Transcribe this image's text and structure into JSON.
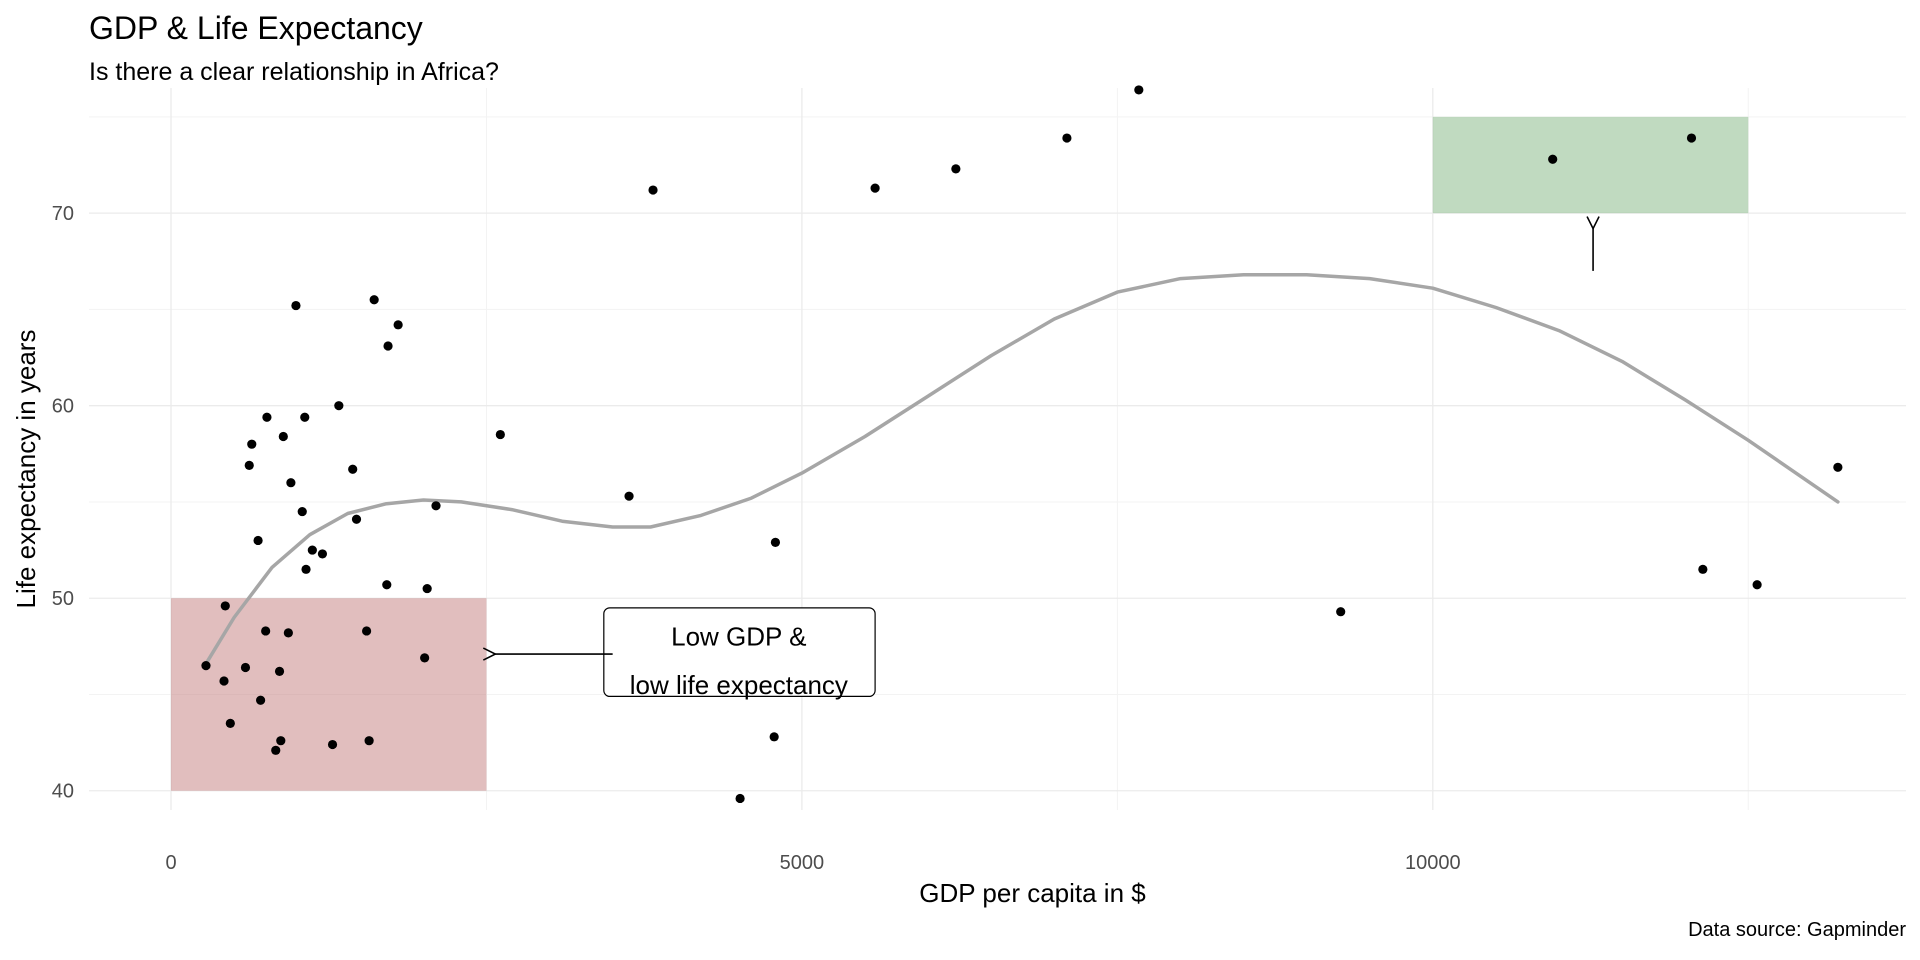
{
  "chart_data": {
    "type": "scatter",
    "title": "GDP & Life Expectancy",
    "subtitle": "Is there a clear relationship in Africa?",
    "caption": "Data source: Gapminder",
    "xlabel": "GDP per capita in $",
    "ylabel": "Life expectancy in years",
    "xlim": [
      -650,
      13750
    ],
    "ylim": [
      39,
      76.5
    ],
    "x_ticks": [
      0,
      5000,
      10000
    ],
    "y_ticks": [
      40,
      50,
      60,
      70
    ],
    "grid": true,
    "point_color": "#000000",
    "points": [
      {
        "x": 277,
        "y": 46.5
      },
      {
        "x": 420,
        "y": 45.7
      },
      {
        "x": 430,
        "y": 49.6
      },
      {
        "x": 470,
        "y": 43.5
      },
      {
        "x": 590,
        "y": 46.4
      },
      {
        "x": 620,
        "y": 56.9
      },
      {
        "x": 640,
        "y": 58.0
      },
      {
        "x": 690,
        "y": 53.0
      },
      {
        "x": 710,
        "y": 44.7
      },
      {
        "x": 750,
        "y": 48.3
      },
      {
        "x": 760,
        "y": 59.4
      },
      {
        "x": 830,
        "y": 42.1
      },
      {
        "x": 860,
        "y": 46.2
      },
      {
        "x": 870,
        "y": 42.6
      },
      {
        "x": 890,
        "y": 58.4
      },
      {
        "x": 930,
        "y": 48.2
      },
      {
        "x": 950,
        "y": 56.0
      },
      {
        "x": 990,
        "y": 65.2
      },
      {
        "x": 1040,
        "y": 54.5
      },
      {
        "x": 1060,
        "y": 59.4
      },
      {
        "x": 1070,
        "y": 51.5
      },
      {
        "x": 1120,
        "y": 52.5
      },
      {
        "x": 1200,
        "y": 52.3
      },
      {
        "x": 1280,
        "y": 42.4
      },
      {
        "x": 1330,
        "y": 60.0
      },
      {
        "x": 1440,
        "y": 56.7
      },
      {
        "x": 1470,
        "y": 54.1
      },
      {
        "x": 1550,
        "y": 48.3
      },
      {
        "x": 1570,
        "y": 42.6
      },
      {
        "x": 1610,
        "y": 65.5
      },
      {
        "x": 1710,
        "y": 50.7
      },
      {
        "x": 1720,
        "y": 63.1
      },
      {
        "x": 1800,
        "y": 64.2
      },
      {
        "x": 2010,
        "y": 46.9
      },
      {
        "x": 2030,
        "y": 50.5
      },
      {
        "x": 2100,
        "y": 54.8
      },
      {
        "x": 2610,
        "y": 58.5
      },
      {
        "x": 3630,
        "y": 55.3
      },
      {
        "x": 3820,
        "y": 71.2
      },
      {
        "x": 4510,
        "y": 39.6
      },
      {
        "x": 4780,
        "y": 42.8
      },
      {
        "x": 4790,
        "y": 52.9
      },
      {
        "x": 5580,
        "y": 71.3
      },
      {
        "x": 6220,
        "y": 72.3
      },
      {
        "x": 7100,
        "y": 73.9
      },
      {
        "x": 7670,
        "y": 76.4
      },
      {
        "x": 9270,
        "y": 49.3
      },
      {
        "x": 10950,
        "y": 72.8
      },
      {
        "x": 12050,
        "y": 73.9
      },
      {
        "x": 12140,
        "y": 51.5
      },
      {
        "x": 12570,
        "y": 50.7
      },
      {
        "x": 13210,
        "y": 56.8
      }
    ],
    "smooth": {
      "color": "#a6a6a6",
      "x": [
        277,
        500,
        800,
        1100,
        1400,
        1700,
        2000,
        2300,
        2700,
        3100,
        3500,
        3800,
        4200,
        4600,
        5000,
        5500,
        6000,
        6500,
        7000,
        7500,
        8000,
        8500,
        9000,
        9500,
        10000,
        10500,
        11000,
        11500,
        12000,
        12500,
        13210
      ],
      "y": [
        46.6,
        49.0,
        51.6,
        53.3,
        54.4,
        54.9,
        55.1,
        55.0,
        54.6,
        54.0,
        53.7,
        53.7,
        54.3,
        55.2,
        56.5,
        58.4,
        60.5,
        62.6,
        64.5,
        65.9,
        66.6,
        66.8,
        66.8,
        66.6,
        66.1,
        65.1,
        63.9,
        62.3,
        60.3,
        58.2,
        55.0
      ]
    },
    "highlight_regions": [
      {
        "x": [
          0,
          2500
        ],
        "y": [
          40,
          50
        ],
        "color": "#c37e7e",
        "opacity": 0.5
      },
      {
        "x": [
          10000,
          12500
        ],
        "y": [
          70,
          75
        ],
        "color": "#81b581",
        "opacity": 0.5
      }
    ],
    "annotations": [
      {
        "lines": [
          "Low GDP &",
          "low life expectancy"
        ],
        "box_x": [
          3430,
          5580
        ],
        "box_y": [
          44.9,
          49.5
        ],
        "text_x": 4500,
        "line_y": [
          48.0,
          45.5
        ],
        "arrow_from": [
          3500,
          47.1
        ],
        "arrow_to": [
          2570,
          47.1
        ]
      }
    ],
    "arrows": [
      {
        "from": [
          11270,
          67.0
        ],
        "to": [
          11270,
          69.2
        ]
      }
    ]
  }
}
